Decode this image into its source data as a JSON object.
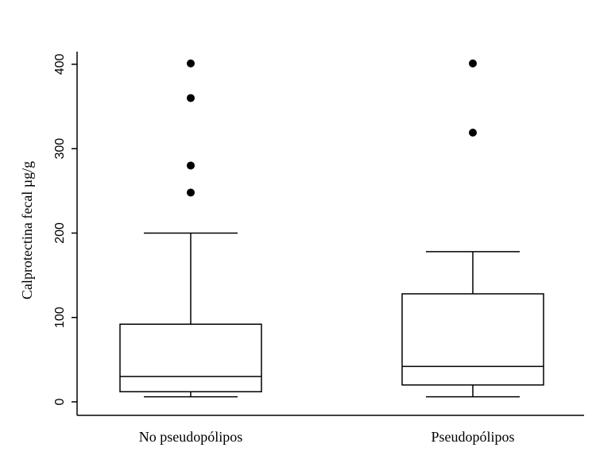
{
  "chart_data": {
    "type": "box",
    "y_label": "Calprotectina fecal µg/g",
    "categories": [
      "No pseudopólipos",
      "Pseudopólipos"
    ],
    "boxes": [
      {
        "whisker_low": 6,
        "q1": 12,
        "median": 30,
        "q3": 92,
        "whisker_high": 200,
        "outliers": [
          401,
          360,
          280,
          248
        ]
      },
      {
        "whisker_low": 6,
        "q1": 20,
        "median": 42,
        "q3": 128,
        "whisker_high": 178,
        "outliers": [
          401,
          319
        ]
      }
    ],
    "color": "#000000",
    "ylim": [
      -16,
      415
    ],
    "yticks": [
      0,
      100,
      200,
      300,
      400
    ]
  }
}
